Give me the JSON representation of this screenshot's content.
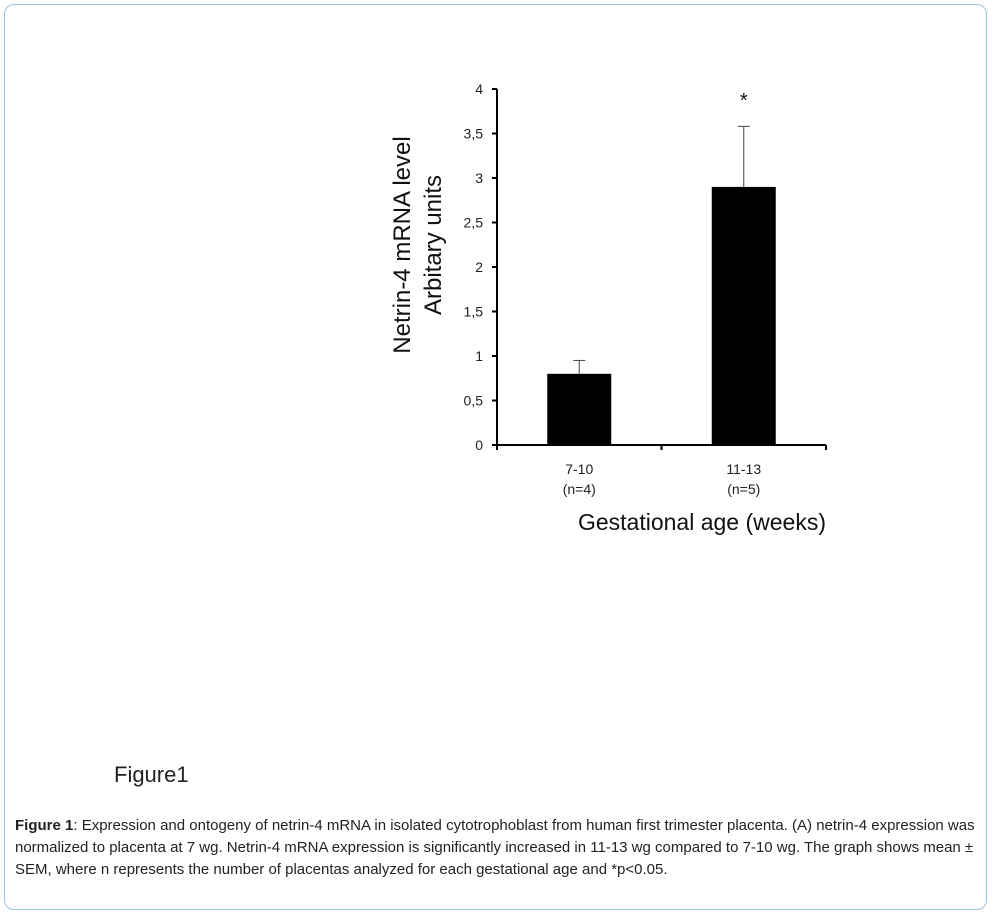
{
  "figure_label": "Figure1",
  "caption": {
    "lead": "Figure 1",
    "text": ": Expression and ontogeny of netrin-4 mRNA in isolated cytotrophoblast from human first trimester placenta. (A) netrin-4 expression was normalized to placenta at 7 wg. Netrin-4 mRNA expression is significantly increased in 11-13 wg compared to 7-10 wg. The graph shows mean ± SEM, where n represents the number of placentas analyzed for each gestational age and *p<0.05."
  },
  "chart_data": {
    "type": "bar",
    "categories": [
      "7-10",
      "11-13"
    ],
    "category_sublabels": [
      "(n=4)",
      "(n=5)"
    ],
    "values": [
      0.8,
      2.9
    ],
    "errors": [
      0.15,
      0.68
    ],
    "annotations": [
      "",
      "*"
    ],
    "ylabel_lines": [
      "Netrin-4 mRNA level",
      "Arbitary units"
    ],
    "xlabel": "Gestational age (weeks)",
    "ylim": [
      0,
      4
    ],
    "yticks": [
      0,
      0.5,
      1,
      1.5,
      2,
      2.5,
      3,
      3.5,
      4
    ],
    "ytick_labels": [
      "0",
      "0,5",
      "1",
      "1,5",
      "2",
      "2,5",
      "3",
      "3,5",
      "4"
    ],
    "bar_color": "#000000",
    "grid": false
  }
}
